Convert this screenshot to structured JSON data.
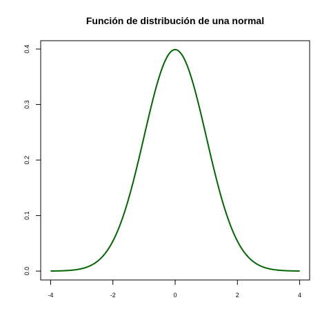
{
  "chart_data": {
    "type": "line",
    "title": "Función de distribución de una normal",
    "xlabel": "",
    "ylabel": "",
    "xlim": [
      -4.32,
      4.32
    ],
    "ylim": [
      -0.016,
      0.415
    ],
    "x_ticks": [
      -4,
      -2,
      0,
      2,
      4
    ],
    "x_tick_labels": [
      "-4",
      "-2",
      "0",
      "2",
      "4"
    ],
    "y_ticks": [
      0.0,
      0.1,
      0.2,
      0.3,
      0.4
    ],
    "y_tick_labels": [
      "0.0",
      "0.1",
      "0.2",
      "0.3",
      "0.4"
    ],
    "grid": false,
    "legend": "none",
    "line_color": "#006400",
    "series": [
      {
        "x": [
          -4,
          -3.75,
          -3.5,
          -3.25,
          -3,
          -2.75,
          -2.5,
          -2.25,
          -2,
          -1.75,
          -1.5,
          -1.25,
          -1,
          -0.75,
          -0.5,
          -0.25,
          0,
          0.25,
          0.5,
          0.75,
          1,
          1.25,
          1.5,
          1.75,
          2,
          2.25,
          2.5,
          2.75,
          3,
          3.25,
          3.5,
          3.75,
          4
        ],
        "values": [
          0.0001,
          0.0004,
          0.0009,
          0.002,
          0.0044,
          0.0091,
          0.0175,
          0.0317,
          0.054,
          0.0863,
          0.1295,
          0.1826,
          0.242,
          0.3011,
          0.3521,
          0.3867,
          0.3989,
          0.3867,
          0.3521,
          0.3011,
          0.242,
          0.1826,
          0.1295,
          0.0863,
          0.054,
          0.0317,
          0.0175,
          0.0091,
          0.0044,
          0.002,
          0.0009,
          0.0004,
          0.0001
        ]
      }
    ]
  }
}
